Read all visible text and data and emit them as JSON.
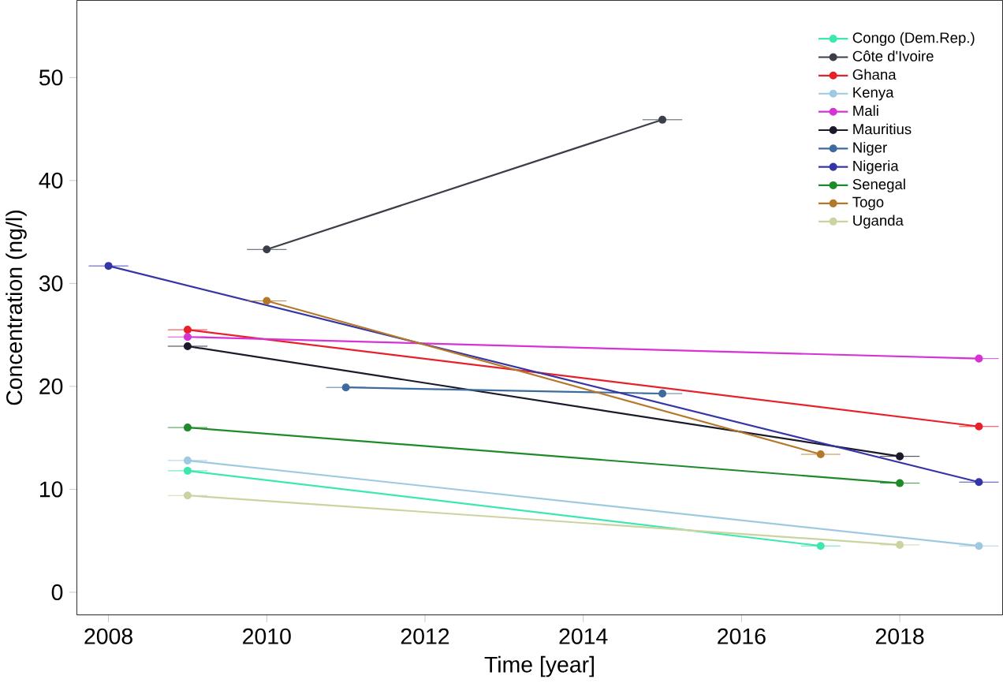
{
  "chart_data": {
    "type": "line",
    "xlabel": "Time [year]",
    "ylabel": "Concentration (ng/l)",
    "xlim": [
      2007.6,
      2019.3
    ],
    "ylim": [
      -2.2,
      57.5
    ],
    "xticks": [
      2008,
      2010,
      2012,
      2014,
      2016,
      2018
    ],
    "yticks": [
      0,
      10,
      20,
      30,
      40,
      50
    ],
    "legend": "top right",
    "marker": "circle",
    "grid": false,
    "series": [
      {
        "name": "Congo (Dem.Rep.)",
        "color": "#3de8b0",
        "x": [
          2009,
          2017
        ],
        "values": [
          11.8,
          4.5
        ],
        "xerrors": [
          0.25,
          0.25
        ]
      },
      {
        "name": "Côte d'Ivoire",
        "color": "#3a3f4a",
        "x": [
          2010,
          2015
        ],
        "values": [
          33.3,
          45.9
        ],
        "xerrors": [
          0.25,
          0.25
        ]
      },
      {
        "name": "Ghana",
        "color": "#e8202a",
        "x": [
          2009,
          2019
        ],
        "values": [
          25.5,
          16.1
        ],
        "xerrors": [
          0.25,
          0.25
        ]
      },
      {
        "name": "Kenya",
        "color": "#9ecae1",
        "x": [
          2009,
          2019
        ],
        "values": [
          12.8,
          4.5
        ],
        "xerrors": [
          0.25,
          0.25
        ]
      },
      {
        "name": "Mali",
        "color": "#d633d6",
        "x": [
          2009,
          2019
        ],
        "values": [
          24.8,
          22.7
        ],
        "xerrors": [
          0.25,
          0.25
        ]
      },
      {
        "name": "Mauritius",
        "color": "#1a1a2a",
        "x": [
          2009,
          2018
        ],
        "values": [
          23.9,
          13.2
        ],
        "xerrors": [
          0.25,
          0.25
        ]
      },
      {
        "name": "Niger",
        "color": "#3d6b9e",
        "x": [
          2011,
          2015
        ],
        "values": [
          19.9,
          19.3
        ],
        "xerrors": [
          0.25,
          0.25
        ]
      },
      {
        "name": "Nigeria",
        "color": "#3535a8",
        "x": [
          2008,
          2019
        ],
        "values": [
          31.7,
          10.7
        ],
        "xerrors": [
          0.25,
          0.25
        ]
      },
      {
        "name": "Senegal",
        "color": "#1f8a2a",
        "x": [
          2009,
          2018
        ],
        "values": [
          16.0,
          10.6
        ],
        "xerrors": [
          0.25,
          0.25
        ]
      },
      {
        "name": "Togo",
        "color": "#b5782a",
        "x": [
          2010,
          2017
        ],
        "values": [
          28.3,
          13.4
        ],
        "xerrors": [
          0.25,
          0.25
        ]
      },
      {
        "name": "Uganda",
        "color": "#c9d4a0",
        "x": [
          2009,
          2018
        ],
        "values": [
          9.4,
          4.6
        ],
        "xerrors": [
          0.25,
          0.25
        ]
      }
    ]
  }
}
